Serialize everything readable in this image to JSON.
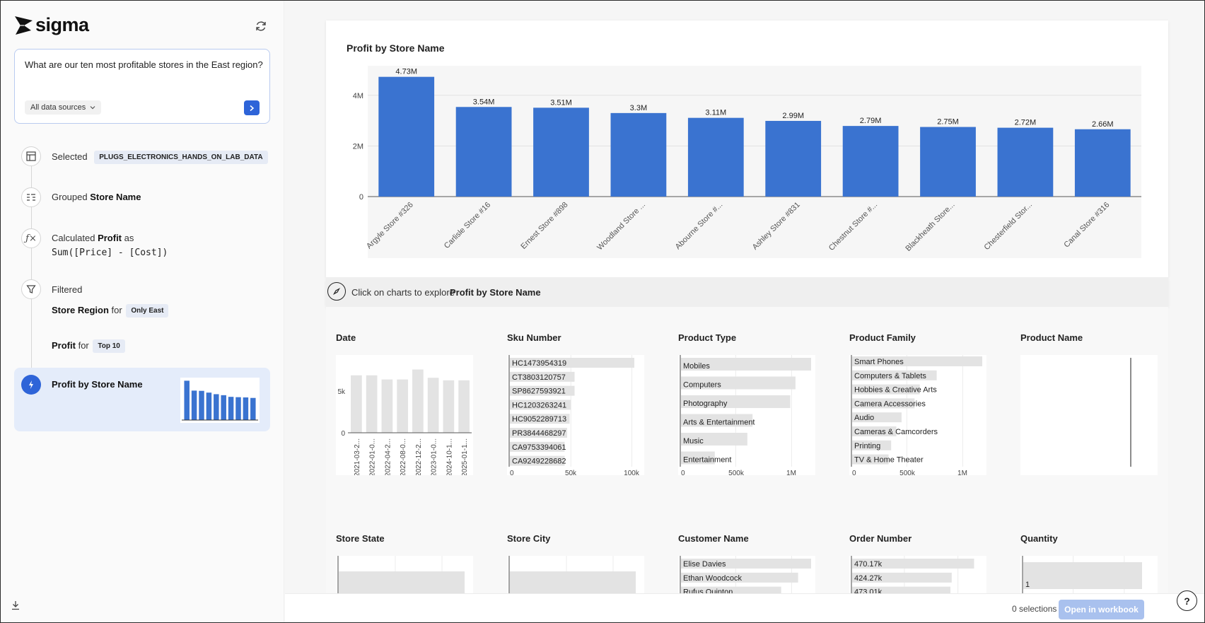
{
  "app": {
    "logo_text": "sigma"
  },
  "query": {
    "text": "What are our ten most profitable stores in the East region?",
    "data_source_label": "All data sources"
  },
  "steps": {
    "selected": {
      "label": "Selected",
      "tag": "PLUGS_ELECTRONICS_HANDS_ON_LAB_DATA"
    },
    "grouped": {
      "label": "Grouped",
      "field": "Store Name"
    },
    "calculated": {
      "label": "Calculated",
      "field": "Profit",
      "suffix": "as",
      "formula": "Sum([Price] - [Cost])"
    },
    "filtered": {
      "label": "Filtered",
      "filter1_field": "Store Region",
      "filter1_for": "for",
      "filter1_tag": "Only East",
      "filter2_field": "Profit",
      "filter2_for": "for",
      "filter2_tag": "Top 10"
    },
    "result": {
      "label": "Profit by Store Name"
    }
  },
  "chart_data": {
    "type": "bar",
    "title": "Profit by Store Name",
    "categories": [
      "Argyle Store #326",
      "Carlisle Store #16",
      "Ernest Store #898",
      "Woodland Store ...",
      "Abourne Store #...",
      "Ashley Store #831",
      "Chestnut Store #...",
      "Blackheath Store...",
      "Chesterfield Stor...",
      "Canal Store #316"
    ],
    "values": [
      4.73,
      3.54,
      3.51,
      3.3,
      3.11,
      2.99,
      2.79,
      2.75,
      2.72,
      2.66
    ],
    "data_labels": [
      "4.73M",
      "3.54M",
      "3.51M",
      "3.3M",
      "3.11M",
      "2.99M",
      "2.79M",
      "2.75M",
      "2.72M",
      "2.66M"
    ],
    "y_ticks": [
      {
        "value": 0,
        "label": "0"
      },
      {
        "value": 2,
        "label": "2M"
      },
      {
        "value": 4,
        "label": "4M"
      }
    ],
    "ylim": [
      0,
      5
    ],
    "unit": "M",
    "grid": true,
    "color": "#3a73d0"
  },
  "explore": {
    "prompt": "Click on charts to explore",
    "target": "Profit by Store Name"
  },
  "facets": {
    "date": {
      "title": "Date",
      "values": [
        6.9,
        6.9,
        6.4,
        6.4,
        7.6,
        6.6,
        6.3,
        6.3
      ],
      "x_labels": [
        "2021-03-2...",
        "2022-01-0...",
        "2022-04-2...",
        "2022-08-0...",
        "2022-12-2...",
        "2023-01-0...",
        "2024-10-1...",
        "2025-01-1..."
      ],
      "y_labels": [
        "5k",
        "0"
      ]
    },
    "sku": {
      "title": "Sku Number",
      "items": [
        "HC1473954319",
        "CT3803120757",
        "SP8627593921",
        "HC1203263241",
        "HC9052289713",
        "PR3844468297",
        "CA9753394061",
        "CA9249228682"
      ],
      "values": [
        1.0,
        0.52,
        0.52,
        0.49,
        0.48,
        0.46,
        0.44,
        0.44
      ],
      "x_labels": [
        "0",
        "50k",
        "100k"
      ]
    },
    "product_type": {
      "title": "Product Type",
      "items": [
        "Mobiles",
        "Computers",
        "Photography",
        "Arts & Entertainment",
        "Music",
        "Entertainment"
      ],
      "values": [
        1.0,
        0.88,
        0.84,
        0.55,
        0.51,
        0.26
      ],
      "x_labels": [
        "0",
        "500k",
        "1M"
      ]
    },
    "product_family": {
      "title": "Product Family",
      "items": [
        "Smart Phones",
        "Computers & Tablets",
        "Hobbies & Creative Arts",
        "Camera Accessories",
        "Audio",
        "Cameras & Camcorders",
        "Printing",
        "TV & Home Theater"
      ],
      "values": [
        1.0,
        0.65,
        0.52,
        0.48,
        0.38,
        0.34,
        0.3,
        0.28
      ],
      "x_labels": [
        "0",
        "500k",
        "1M"
      ]
    },
    "product_name": {
      "title": "Product Name"
    },
    "store_state": {
      "title": "Store State"
    },
    "store_city": {
      "title": "Store City"
    },
    "customer_name": {
      "title": "Customer Name",
      "items": [
        "Elise Davies",
        "Ethan Woodcock",
        "Rufus Quinton"
      ],
      "values": [
        1.0,
        0.9,
        0.77
      ]
    },
    "order_number": {
      "title": "Order Number",
      "items": [
        "470.17k",
        "424.27k",
        "473.01k"
      ],
      "values": [
        0.98,
        0.8,
        0.79
      ]
    },
    "quantity": {
      "title": "Quantity",
      "items": [
        "1"
      ],
      "values": [
        1.0
      ]
    }
  },
  "footer": {
    "selections": "0 selections",
    "open_button": "Open in workbook",
    "help": "?"
  }
}
